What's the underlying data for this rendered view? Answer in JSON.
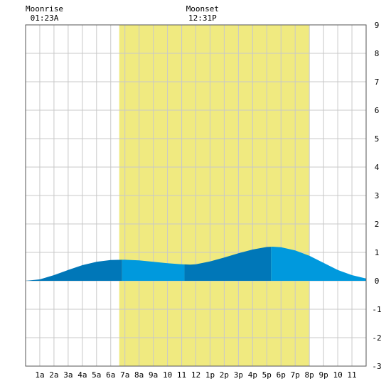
{
  "chart_data": {
    "type": "area",
    "title": "",
    "xlabel": "",
    "ylabel": "",
    "xlim": [
      0,
      24
    ],
    "ylim": [
      -3,
      9
    ],
    "grid": true,
    "x_tick_labels": [
      "1a",
      "2a",
      "3a",
      "4a",
      "5a",
      "6a",
      "7a",
      "8a",
      "9a",
      "10",
      "11",
      "12",
      "1p",
      "2p",
      "3p",
      "4p",
      "5p",
      "6p",
      "7p",
      "8p",
      "9p",
      "10",
      "11"
    ],
    "y_ticks": [
      -3,
      -2,
      -1,
      0,
      1,
      2,
      3,
      4,
      5,
      6,
      7,
      8,
      9
    ],
    "daylight": {
      "start_hour": 6.6,
      "end_hour": 20.0
    },
    "annotations": [
      {
        "id": "moonrise",
        "label": "Moonrise",
        "time": "01:23A",
        "hour": 1.38
      },
      {
        "id": "moonset",
        "label": "Moonset",
        "time": "12:31P",
        "hour": 12.52
      }
    ],
    "series": [
      {
        "x": [
          0,
          1,
          2,
          3,
          4,
          5,
          6,
          6.8,
          7,
          8,
          9,
          10,
          11,
          11.6,
          12,
          13,
          14,
          15,
          16,
          17,
          17.4,
          18,
          19,
          20,
          21,
          22,
          23,
          24
        ],
        "y": [
          0.0,
          0.05,
          0.2,
          0.38,
          0.55,
          0.67,
          0.73,
          0.74,
          0.74,
          0.72,
          0.67,
          0.62,
          0.58,
          0.57,
          0.58,
          0.68,
          0.82,
          0.97,
          1.1,
          1.19,
          1.2,
          1.18,
          1.07,
          0.88,
          0.63,
          0.38,
          0.2,
          0.08
        ]
      }
    ],
    "shading_bands": [
      {
        "from": 0,
        "to": 6.8,
        "tone": "dark"
      },
      {
        "from": 6.8,
        "to": 11.2,
        "tone": "light"
      },
      {
        "from": 11.2,
        "to": 17.3,
        "tone": "dark"
      },
      {
        "from": 17.3,
        "to": 24,
        "tone": "light"
      }
    ],
    "colors": {
      "daylight": "#f0ea80",
      "water_light": "#0099dd",
      "water_dark": "#0077b8",
      "grid": "#c8c8c8",
      "frame": "#555555"
    }
  }
}
